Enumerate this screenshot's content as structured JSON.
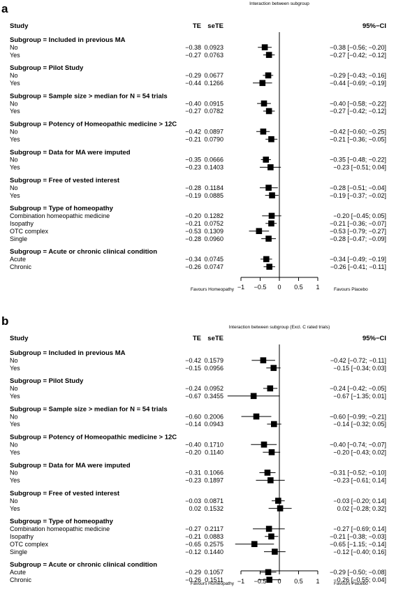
{
  "chart_data": [
    {
      "type": "forest",
      "panel_label": "a",
      "title": "Interaction between subgroup",
      "columns": {
        "study": "Study",
        "te": "TE",
        "sete": "seTE",
        "ci": "95%−CI"
      },
      "xlim": [
        -1,
        1
      ],
      "ticks": [
        {
          "v": -1,
          "t": "−1"
        },
        {
          "v": -0.5,
          "t": "−0.5"
        },
        {
          "v": 0,
          "t": "0"
        },
        {
          "v": 0.5,
          "t": "0.5"
        },
        {
          "v": 1,
          "t": "1"
        }
      ],
      "favours_left": "Favours Homeopathy",
      "favours_right": "Favours Placebo",
      "groups": [
        {
          "label": "Subgroup = Included in previous MA",
          "rows": [
            {
              "name": "No",
              "te": -0.38,
              "te_text": "−0.38",
              "sete": "0.0923",
              "lo": -0.56,
              "hi": -0.2,
              "ci": "−0.38  [−0.56; −0.20]"
            },
            {
              "name": "Yes",
              "te": -0.27,
              "te_text": "−0.27",
              "sete": "0.0763",
              "lo": -0.42,
              "hi": -0.12,
              "ci": "−0.27  [−0.42; −0.12]"
            }
          ]
        },
        {
          "label": "Subgroup = Pilot Study",
          "rows": [
            {
              "name": "No",
              "te": -0.29,
              "te_text": "−0.29",
              "sete": "0.0677",
              "lo": -0.43,
              "hi": -0.16,
              "ci": "−0.29  [−0.43; −0.16]"
            },
            {
              "name": "Yes",
              "te": -0.44,
              "te_text": "−0.44",
              "sete": "0.1266",
              "lo": -0.69,
              "hi": -0.19,
              "ci": "−0.44  [−0.69; −0.19]"
            }
          ]
        },
        {
          "label": "Subgroup = Sample size > median for N = 54 trials",
          "rows": [
            {
              "name": "No",
              "te": -0.4,
              "te_text": "−0.40",
              "sete": "0.0915",
              "lo": -0.58,
              "hi": -0.22,
              "ci": "−0.40  [−0.58; −0.22]"
            },
            {
              "name": "Yes",
              "te": -0.27,
              "te_text": "−0.27",
              "sete": "0.0782",
              "lo": -0.42,
              "hi": -0.12,
              "ci": "−0.27  [−0.42; −0.12]"
            }
          ]
        },
        {
          "label": "Subgroup = Potency of Homeopathic medicine > 12C",
          "rows": [
            {
              "name": "No",
              "te": -0.42,
              "te_text": "−0.42",
              "sete": "0.0897",
              "lo": -0.6,
              "hi": -0.25,
              "ci": "−0.42  [−0.60; −0.25]"
            },
            {
              "name": "Yes",
              "te": -0.21,
              "te_text": "−0.21",
              "sete": "0.0790",
              "lo": -0.36,
              "hi": -0.05,
              "ci": "−0.21  [−0.36; −0.05]"
            }
          ]
        },
        {
          "label": "Subgroup = Data for MA were imputed",
          "rows": [
            {
              "name": "No",
              "te": -0.35,
              "te_text": "−0.35",
              "sete": "0.0666",
              "lo": -0.48,
              "hi": -0.22,
              "ci": "−0.35  [−0.48; −0.22]"
            },
            {
              "name": "Yes",
              "te": -0.23,
              "te_text": "−0.23",
              "sete": "0.1403",
              "lo": -0.51,
              "hi": 0.04,
              "ci": "−0.23  [−0.51;  0.04]"
            }
          ]
        },
        {
          "label": "Subgroup = Free of vested interest",
          "rows": [
            {
              "name": "No",
              "te": -0.28,
              "te_text": "−0.28",
              "sete": "0.1184",
              "lo": -0.51,
              "hi": -0.04,
              "ci": "−0.28  [−0.51; −0.04]"
            },
            {
              "name": "Yes",
              "te": -0.19,
              "te_text": "−0.19",
              "sete": "0.0885",
              "lo": -0.37,
              "hi": -0.02,
              "ci": "−0.19  [−0.37; −0.02]"
            }
          ]
        },
        {
          "label": "Subgroup = Type of homeopathy",
          "rows": [
            {
              "name": "Combination homeopathic medicine",
              "te": -0.2,
              "te_text": "−0.20",
              "sete": "0.1282",
              "lo": -0.45,
              "hi": 0.05,
              "ci": "−0.20  [−0.45;  0.05]"
            },
            {
              "name": "Isopathy",
              "te": -0.21,
              "te_text": "−0.21",
              "sete": "0.0752",
              "lo": -0.36,
              "hi": -0.07,
              "ci": "−0.21  [−0.36; −0.07]"
            },
            {
              "name": "OTC complex",
              "te": -0.53,
              "te_text": "−0.53",
              "sete": "0.1309",
              "lo": -0.79,
              "hi": -0.27,
              "ci": "−0.53  [−0.79; −0.27]"
            },
            {
              "name": "Single",
              "te": -0.28,
              "te_text": "−0.28",
              "sete": "0.0960",
              "lo": -0.47,
              "hi": -0.09,
              "ci": "−0.28  [−0.47; −0.09]"
            }
          ]
        },
        {
          "label": "Subgroup = Acute or chronic clinical condition",
          "rows": [
            {
              "name": "Acute",
              "te": -0.34,
              "te_text": "−0.34",
              "sete": "0.0745",
              "lo": -0.49,
              "hi": -0.19,
              "ci": "−0.34  [−0.49; −0.19]"
            },
            {
              "name": "Chronic",
              "te": -0.26,
              "te_text": "−0.26",
              "sete": "0.0747",
              "lo": -0.41,
              "hi": -0.11,
              "ci": "−0.26  [−0.41; −0.11]"
            }
          ]
        }
      ]
    },
    {
      "type": "forest",
      "panel_label": "b",
      "title": "Interaction between subgroup (Excl. C rated trials)",
      "columns": {
        "study": "Study",
        "te": "TE",
        "sete": "seTE",
        "ci": "95%−CI"
      },
      "xlim": [
        -1,
        1
      ],
      "ticks": [
        {
          "v": -1,
          "t": "−1"
        },
        {
          "v": -0.5,
          "t": "−0.5"
        },
        {
          "v": 0,
          "t": "0"
        },
        {
          "v": 0.5,
          "t": "0.5"
        },
        {
          "v": 1,
          "t": "1"
        }
      ],
      "favours_left": "Favours Homeopathy",
      "favours_right": "Favours Placebo",
      "groups": [
        {
          "label": "Subgroup = Included in previous MA",
          "rows": [
            {
              "name": "No",
              "te": -0.42,
              "te_text": "−0.42",
              "sete": "0.1579",
              "lo": -0.72,
              "hi": -0.11,
              "ci": "−0.42  [−0.72; −0.11]"
            },
            {
              "name": "Yes",
              "te": -0.15,
              "te_text": "−0.15",
              "sete": "0.0956",
              "lo": -0.34,
              "hi": 0.03,
              "ci": "−0.15  [−0.34;  0.03]"
            }
          ]
        },
        {
          "label": "Subgroup = Pilot Study",
          "rows": [
            {
              "name": "No",
              "te": -0.24,
              "te_text": "−0.24",
              "sete": "0.0952",
              "lo": -0.42,
              "hi": -0.05,
              "ci": "−0.24  [−0.42; −0.05]"
            },
            {
              "name": "Yes",
              "te": -0.67,
              "te_text": "−0.67",
              "sete": "0.3455",
              "lo": -1.35,
              "hi": 0.01,
              "ci": "−0.67  [−1.35;  0.01]"
            }
          ]
        },
        {
          "label": "Subgroup = Sample size > median for N = 54 trials",
          "rows": [
            {
              "name": "No",
              "te": -0.6,
              "te_text": "−0.60",
              "sete": "0.2006",
              "lo": -0.99,
              "hi": -0.21,
              "ci": "−0.60  [−0.99; −0.21]"
            },
            {
              "name": "Yes",
              "te": -0.14,
              "te_text": "−0.14",
              "sete": "0.0943",
              "lo": -0.32,
              "hi": 0.05,
              "ci": "−0.14  [−0.32;  0.05]"
            }
          ]
        },
        {
          "label": "Subgroup = Potency of Homeopathic medicine > 12C",
          "rows": [
            {
              "name": "No",
              "te": -0.4,
              "te_text": "−0.40",
              "sete": "0.1710",
              "lo": -0.74,
              "hi": -0.07,
              "ci": "−0.40  [−0.74; −0.07]"
            },
            {
              "name": "Yes",
              "te": -0.2,
              "te_text": "−0.20",
              "sete": "0.1140",
              "lo": -0.43,
              "hi": 0.02,
              "ci": "−0.20  [−0.43;  0.02]"
            }
          ]
        },
        {
          "label": "Subgroup = Data for MA were imputed",
          "rows": [
            {
              "name": "No",
              "te": -0.31,
              "te_text": "−0.31",
              "sete": "0.1066",
              "lo": -0.52,
              "hi": -0.1,
              "ci": "−0.31  [−0.52; −0.10]"
            },
            {
              "name": "Yes",
              "te": -0.23,
              "te_text": "−0.23",
              "sete": "0.1897",
              "lo": -0.61,
              "hi": 0.14,
              "ci": "−0.23  [−0.61;  0.14]"
            }
          ]
        },
        {
          "label": "Subgroup = Free of vested interest",
          "rows": [
            {
              "name": "No",
              "te": -0.03,
              "te_text": "−0.03",
              "sete": "0.0871",
              "lo": -0.2,
              "hi": 0.14,
              "ci": "−0.03  [−0.20;  0.14]"
            },
            {
              "name": "Yes",
              "te": 0.02,
              "te_text": "0.02",
              "sete": "0.1532",
              "lo": -0.28,
              "hi": 0.32,
              "ci": "0.02  [−0.28;  0.32]"
            }
          ]
        },
        {
          "label": "Subgroup = Type of homeopathy",
          "rows": [
            {
              "name": "Combination homeopathic medicine",
              "te": -0.27,
              "te_text": "−0.27",
              "sete": "0.2117",
              "lo": -0.69,
              "hi": 0.14,
              "ci": "−0.27  [−0.69;  0.14]"
            },
            {
              "name": "Isopathy",
              "te": -0.21,
              "te_text": "−0.21",
              "sete": "0.0883",
              "lo": -0.38,
              "hi": -0.03,
              "ci": "−0.21  [−0.38; −0.03]"
            },
            {
              "name": "OTC complex",
              "te": -0.65,
              "te_text": "−0.65",
              "sete": "0.2575",
              "lo": -1.15,
              "hi": -0.14,
              "ci": "−0.65  [−1.15; −0.14]"
            },
            {
              "name": "Single",
              "te": -0.12,
              "te_text": "−0.12",
              "sete": "0.1440",
              "lo": -0.4,
              "hi": 0.16,
              "ci": "−0.12  [−0.40;  0.16]"
            }
          ]
        },
        {
          "label": "Subgroup = Acute or chronic clinical condition",
          "rows": [
            {
              "name": "Acute",
              "te": -0.29,
              "te_text": "−0.29",
              "sete": "0.1057",
              "lo": -0.5,
              "hi": -0.08,
              "ci": "−0.29  [−0.50; −0.08]"
            },
            {
              "name": "Chronic",
              "te": -0.26,
              "te_text": "−0.26",
              "sete": "0.1511",
              "lo": -0.55,
              "hi": 0.04,
              "ci": "−0.26  [−0.55;  0.04]"
            }
          ]
        }
      ]
    }
  ]
}
